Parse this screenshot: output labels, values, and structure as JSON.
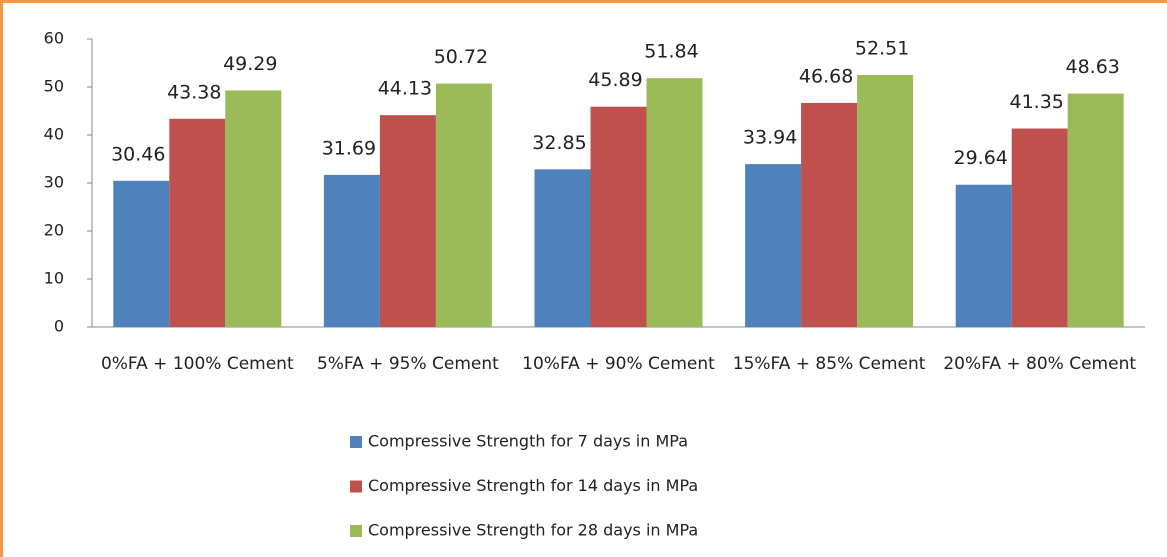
{
  "chart_data": {
    "type": "bar",
    "categories": [
      "0%FA + 100% Cement",
      "5%FA + 95% Cement",
      "10%FA + 90% Cement",
      "15%FA + 85% Cement",
      "20%FA + 80% Cement"
    ],
    "series": [
      {
        "name": "Compressive Strength for 7 days in MPa",
        "color": "#4f81bd",
        "values": [
          30.46,
          31.69,
          32.85,
          33.94,
          29.64
        ]
      },
      {
        "name": "Compressive Strength for 14 days in MPa",
        "color": "#c0504d",
        "values": [
          43.38,
          44.13,
          45.89,
          46.68,
          41.35
        ]
      },
      {
        "name": "Compressive Strength for 28 days in MPa",
        "color": "#9bbb59",
        "values": [
          49.29,
          50.72,
          51.84,
          52.51,
          48.63
        ]
      }
    ],
    "ylim": [
      0,
      60
    ],
    "yticks": [
      0,
      10,
      20,
      30,
      40,
      50,
      60
    ],
    "grid": false,
    "legend": "bottom"
  }
}
